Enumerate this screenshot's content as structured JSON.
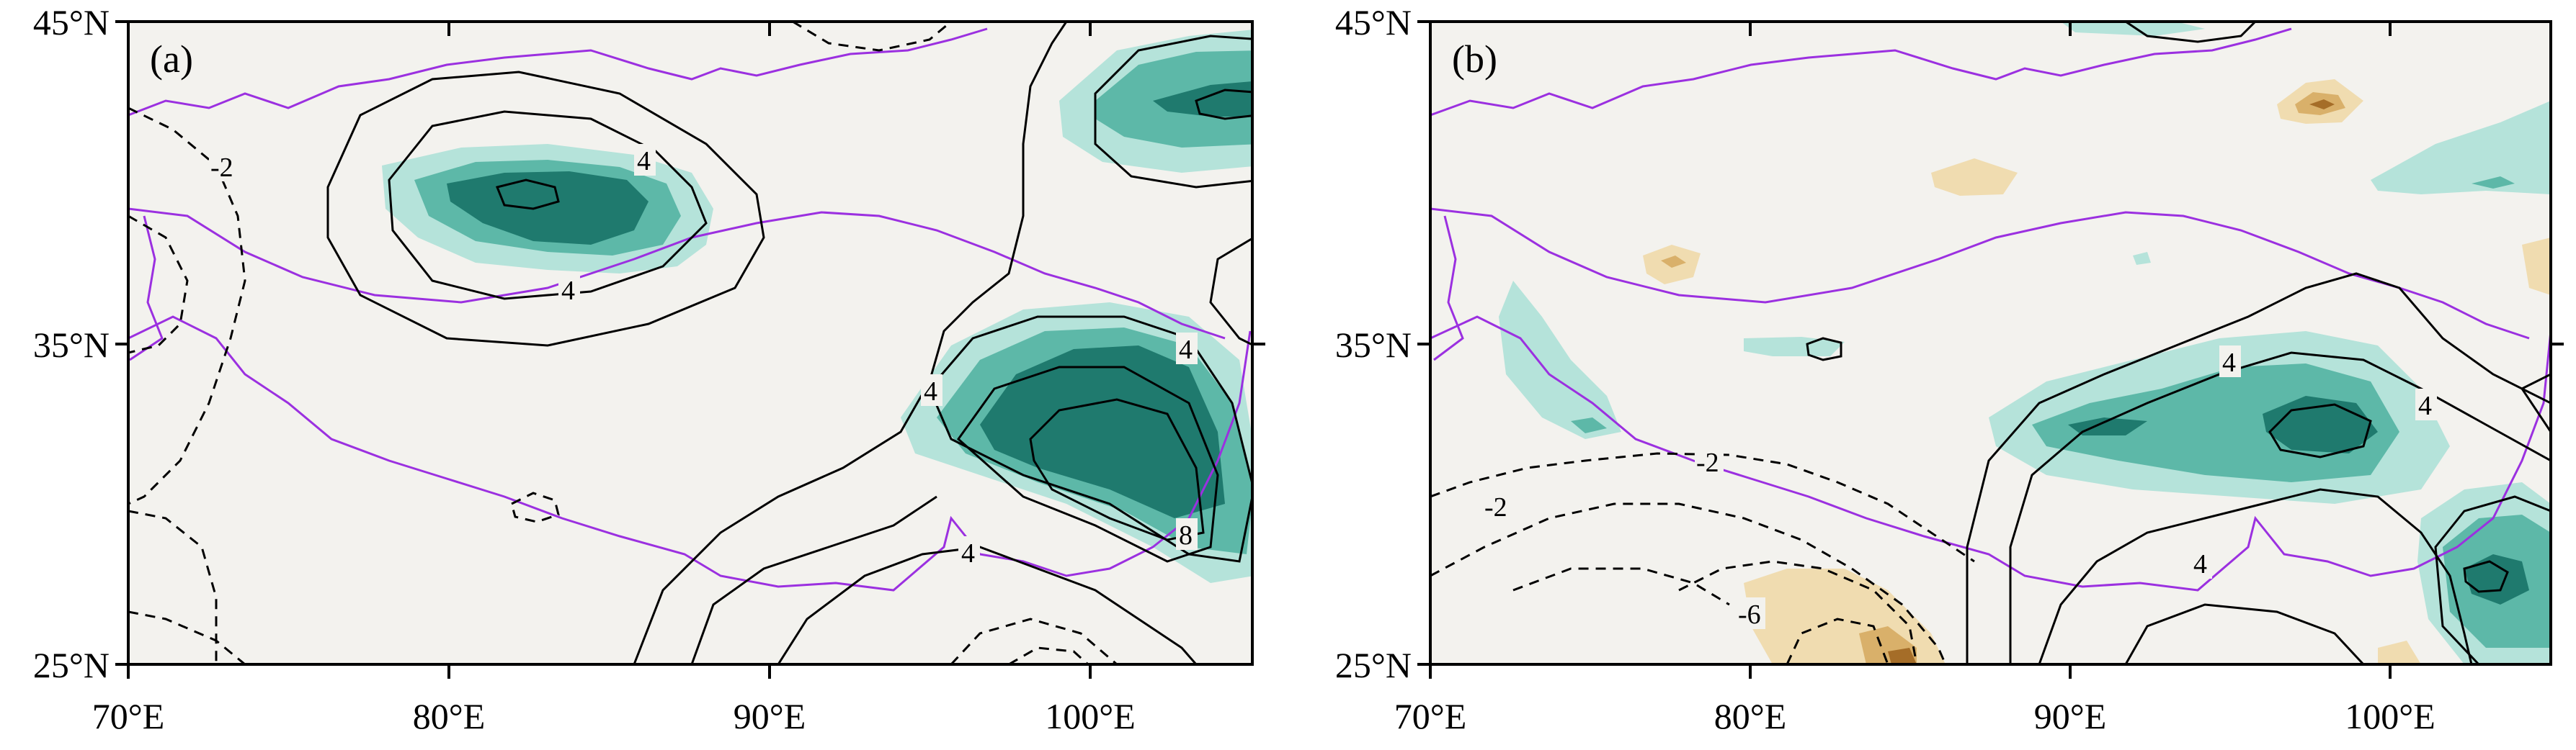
{
  "figure": {
    "panels": [
      {
        "label": "(a)",
        "y_ticks": [
          "45°N",
          "35°N",
          "25°N"
        ],
        "x_ticks": [
          "70°E",
          "80°E",
          "90°E",
          "100°E"
        ],
        "contour_labels": [
          "-2",
          "4",
          "4",
          "4",
          "4",
          "8",
          "4"
        ]
      },
      {
        "label": "(b)",
        "y_ticks": [
          "45°N",
          "35°N",
          "25°N"
        ],
        "x_ticks": [
          "70°E",
          "80°E",
          "90°E",
          "100°E"
        ],
        "contour_labels": [
          "-2",
          "-2",
          "-6",
          "4",
          "4",
          "4"
        ]
      }
    ]
  },
  "map_data": {
    "type": "contour-map",
    "extent": {
      "lon": [
        70,
        105
      ],
      "lat": [
        25,
        45
      ]
    },
    "colors": {
      "background": "#f3f2ee",
      "boundary": "#9b30e0",
      "teal_light": "#b5e3da",
      "teal_mid": "#5db8a8",
      "teal_dark": "#1f7a6e",
      "brown_light": "#f0dcb0",
      "brown_mid": "#d9b06a",
      "brown_dark": "#a56d28",
      "contour": "#000000"
    }
  }
}
